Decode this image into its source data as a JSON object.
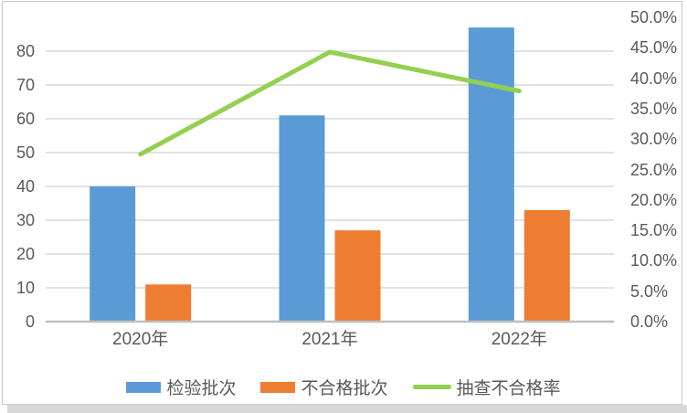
{
  "chart_data": {
    "type": "bar",
    "subtype": "clustered-bar-with-line-combo",
    "title": "",
    "categories": [
      "2020年",
      "2021年",
      "2022年"
    ],
    "series": [
      {
        "name": "检验批次",
        "type": "bar",
        "axis": "left",
        "color": "#5B9BD5",
        "values": [
          40,
          61,
          87
        ]
      },
      {
        "name": "不合格批次",
        "type": "bar",
        "axis": "left",
        "color": "#ED7D31",
        "values": [
          11,
          27,
          33
        ]
      },
      {
        "name": "抽查不合格率",
        "type": "line",
        "axis": "right",
        "color": "#92D050",
        "values": [
          27.5,
          44.3,
          37.9
        ]
      }
    ],
    "left_axis": {
      "ticks": [
        0,
        10,
        20,
        30,
        40,
        50,
        60,
        70,
        80
      ],
      "min": 0,
      "max": 90
    },
    "right_axis": {
      "ticks": [
        "0.0%",
        "5.0%",
        "10.0%",
        "15.0%",
        "20.0%",
        "25.0%",
        "30.0%",
        "35.0%",
        "40.0%",
        "45.0%",
        "50.0%"
      ],
      "min": 0,
      "max": 50
    },
    "legend_position": "bottom",
    "grid": true,
    "colors": {
      "gridline": "#d9d9d9",
      "axis_line": "#bfbfbf",
      "tick_text": "#595959",
      "frame_border": "#c9c9c9",
      "bottom_shadow": "#d8d8d8"
    }
  }
}
